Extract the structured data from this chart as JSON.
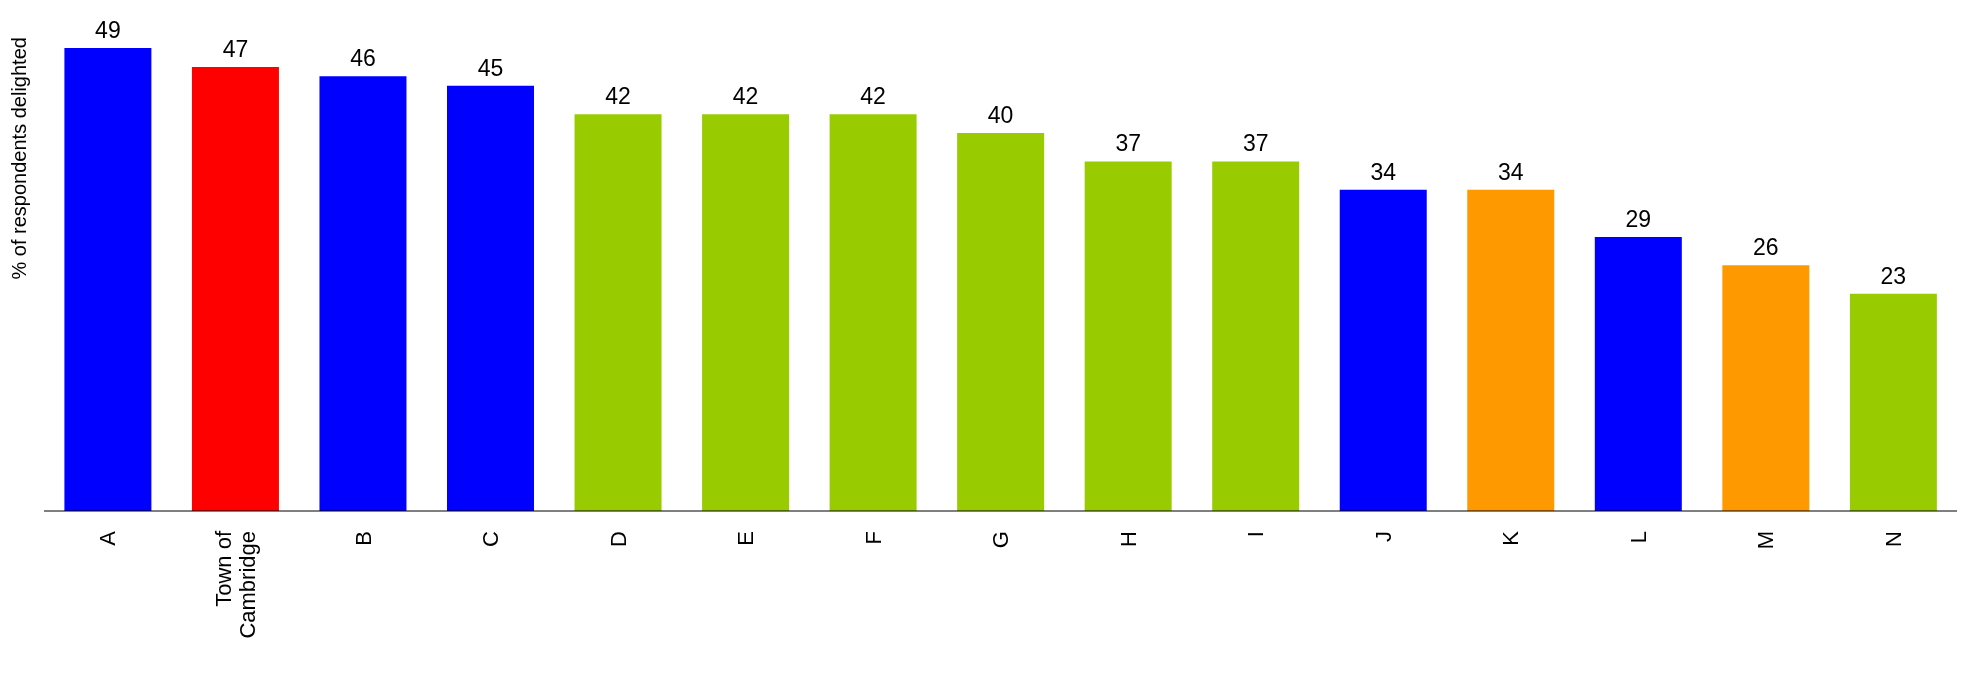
{
  "chart_data": {
    "type": "bar",
    "ylabel": "% of respondents delighted",
    "categories": [
      "A",
      "Town of Cambridge",
      "B",
      "C",
      "D",
      "E",
      "F",
      "G",
      "H",
      "I",
      "J",
      "K",
      "L",
      "M",
      "N"
    ],
    "values": [
      49,
      47,
      46,
      45,
      42,
      42,
      42,
      40,
      37,
      37,
      34,
      34,
      29,
      26,
      23
    ],
    "colors": [
      "#0000ff",
      "#ff0000",
      "#0000ff",
      "#0000ff",
      "#99cc00",
      "#99cc00",
      "#99cc00",
      "#99cc00",
      "#99cc00",
      "#99cc00",
      "#0000ff",
      "#ff9900",
      "#0000ff",
      "#ff9900",
      "#99cc00"
    ],
    "data_labels": true,
    "grid": false,
    "legend": false
  }
}
